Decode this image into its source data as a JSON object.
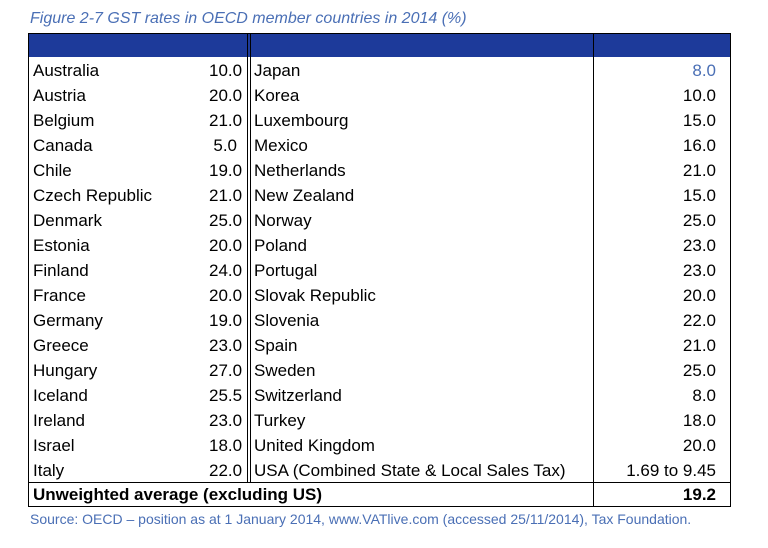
{
  "caption": "Figure 2-7 GST rates in OECD member countries in 2014 (%)",
  "rows": [
    {
      "country_left": "Australia",
      "rate_left": "10.0",
      "country_right": "Japan",
      "rate_right": "8.0"
    },
    {
      "country_left": "Austria",
      "rate_left": "20.0",
      "country_right": "Korea",
      "rate_right": "10.0"
    },
    {
      "country_left": "Belgium",
      "rate_left": "21.0",
      "country_right": "Luxembourg",
      "rate_right": "15.0"
    },
    {
      "country_left": "Canada",
      "rate_left": "5.0",
      "country_right": "Mexico",
      "rate_right": "16.0"
    },
    {
      "country_left": "Chile",
      "rate_left": "19.0",
      "country_right": "Netherlands",
      "rate_right": "21.0"
    },
    {
      "country_left": "Czech Republic",
      "rate_left": "21.0",
      "country_right": "New Zealand",
      "rate_right": "15.0"
    },
    {
      "country_left": "Denmark",
      "rate_left": "25.0",
      "country_right": "Norway",
      "rate_right": "25.0"
    },
    {
      "country_left": "Estonia",
      "rate_left": "20.0",
      "country_right": "Poland",
      "rate_right": "23.0"
    },
    {
      "country_left": "Finland",
      "rate_left": "24.0",
      "country_right": "Portugal",
      "rate_right": "23.0"
    },
    {
      "country_left": "France",
      "rate_left": "20.0",
      "country_right": "Slovak Republic",
      "rate_right": "20.0"
    },
    {
      "country_left": "Germany",
      "rate_left": "19.0",
      "country_right": "Slovenia",
      "rate_right": "22.0"
    },
    {
      "country_left": "Greece",
      "rate_left": "23.0",
      "country_right": "Spain",
      "rate_right": "21.0"
    },
    {
      "country_left": "Hungary",
      "rate_left": "27.0",
      "country_right": "Sweden",
      "rate_right": "25.0"
    },
    {
      "country_left": "Iceland",
      "rate_left": "25.5",
      "country_right": "Switzerland",
      "rate_right": "8.0"
    },
    {
      "country_left": "Ireland",
      "rate_left": "23.0",
      "country_right": "Turkey",
      "rate_right": "18.0"
    },
    {
      "country_left": "Israel",
      "rate_left": "18.0",
      "country_right": "United Kingdom",
      "rate_right": "20.0"
    },
    {
      "country_left": "Italy",
      "rate_left": "22.0",
      "country_right": "USA (Combined State & Local Sales Tax)",
      "rate_right": "1.69 to 9.45"
    }
  ],
  "average": {
    "label": "Unweighted average (excluding US)",
    "value": "19.2"
  },
  "source": "Source: OECD – position as at 1 January 2014, www.VATlive.com (accessed 25/11/2014), Tax Foundation.",
  "colors": {
    "header": "#1d3a9a",
    "caption": "#4a6fb5",
    "japan_rate": "#4a6fb5"
  }
}
